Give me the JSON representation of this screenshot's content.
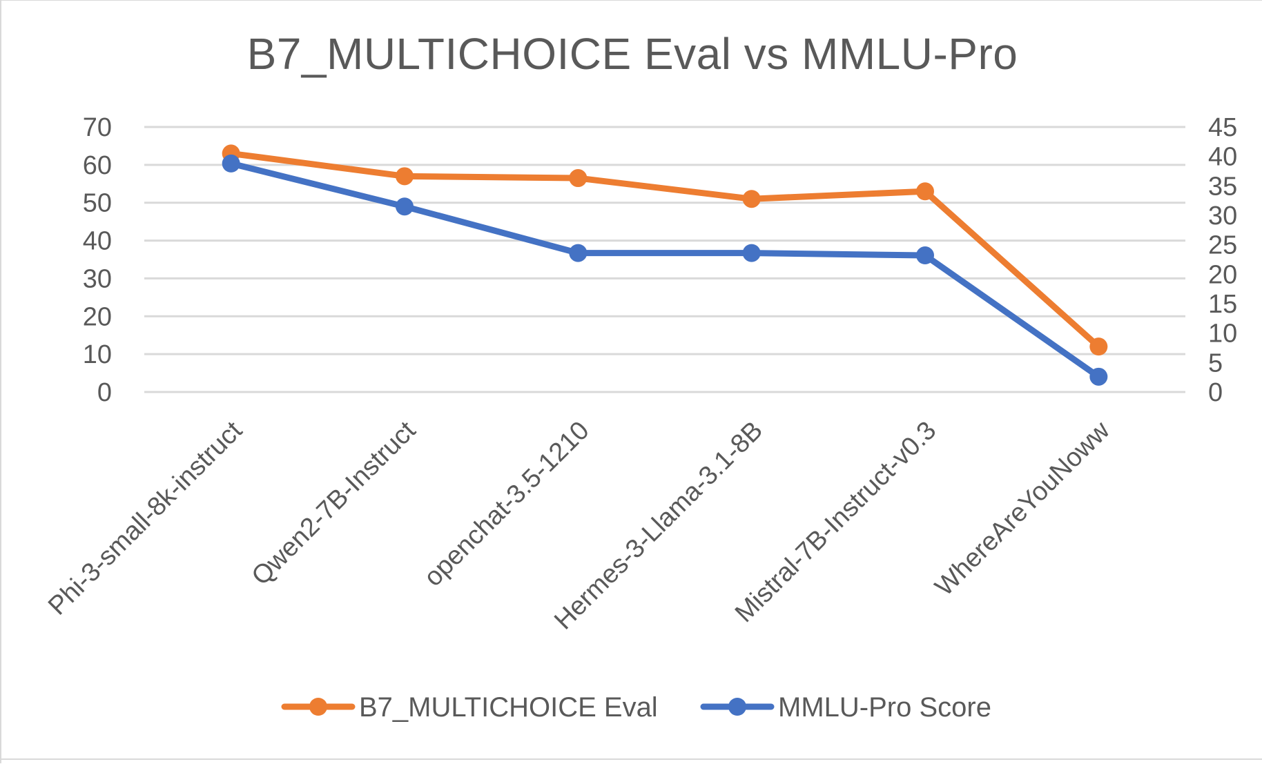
{
  "chart_data": {
    "type": "line",
    "title": "B7_MULTICHOICE Eval vs MMLU-Pro",
    "categories": [
      "Phi-3-small-8k-instruct",
      "Qwen2-7B-Instruct",
      "openchat-3.5-1210",
      "Hermes-3-Llama-3.1-8B",
      "Mistral-7B-Instruct-v0.3",
      "WhereAreYouNoww"
    ],
    "y_left": {
      "min": 0,
      "max": 70,
      "step": 10,
      "ticks": [
        "0",
        "10",
        "20",
        "30",
        "40",
        "50",
        "60",
        "70"
      ]
    },
    "y_right": {
      "min": 0,
      "max": 45,
      "step": 5,
      "ticks": [
        "0",
        "5",
        "10",
        "15",
        "20",
        "25",
        "30",
        "35",
        "40",
        "45"
      ]
    },
    "series": [
      {
        "name": "B7_MULTICHOICE Eval",
        "axis": "left",
        "color": "#ed7d31",
        "values": [
          63,
          57,
          56.5,
          51,
          53,
          12
        ]
      },
      {
        "name": "MMLU-Pro Score",
        "axis": "right",
        "color": "#4472c4",
        "values": [
          38.8,
          31.5,
          23.6,
          23.6,
          23.2,
          2.6
        ]
      }
    ],
    "grid": true,
    "legend_position": "bottom"
  }
}
